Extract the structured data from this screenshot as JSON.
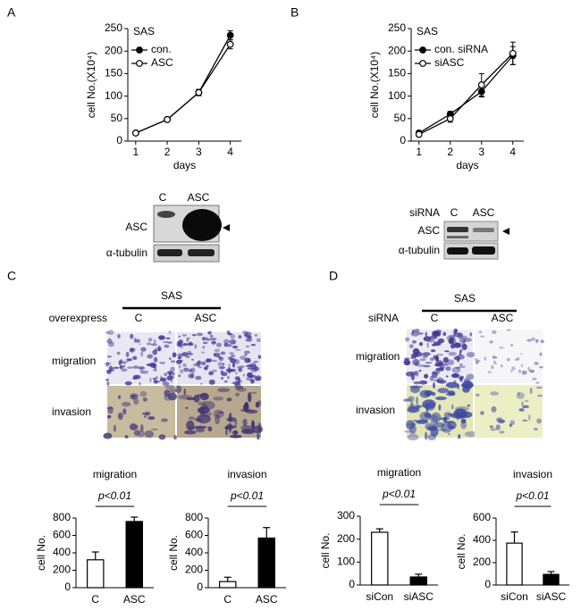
{
  "chart_data": [
    {
      "type": "line",
      "title": "SAS",
      "xlabel": "days",
      "ylabel": "cell No.(X10⁴)",
      "x": [
        1,
        2,
        3,
        4
      ],
      "xlim": [
        0.75,
        4.35
      ],
      "xticks": [
        1,
        2,
        3,
        4
      ],
      "ylim": [
        0,
        250
      ],
      "yticks": [
        0,
        50,
        100,
        150,
        200,
        250
      ],
      "series": [
        {
          "name": "con.",
          "color": "#000000",
          "fill": "#000000",
          "values": [
            18,
            48,
            108,
            235
          ],
          "errors": [
            3,
            3,
            7,
            10
          ]
        },
        {
          "name": "ASC",
          "color": "#000000",
          "fill": "#ffffff",
          "values": [
            18,
            48,
            108,
            215
          ],
          "errors": [
            3,
            3,
            7,
            10
          ]
        }
      ]
    },
    {
      "type": "line",
      "title": "SAS",
      "xlabel": "days",
      "ylabel": "cell No.(X10⁴)",
      "x": [
        1,
        2,
        3,
        4
      ],
      "xlim": [
        0.75,
        4.35
      ],
      "xticks": [
        1,
        2,
        3,
        4
      ],
      "ylim": [
        0,
        250
      ],
      "yticks": [
        0,
        50,
        100,
        150,
        200,
        250
      ],
      "series": [
        {
          "name": "con. siRNA",
          "color": "#000000",
          "fill": "#000000",
          "values": [
            18,
            60,
            110,
            190
          ],
          "errors": [
            5,
            6,
            12,
            20
          ]
        },
        {
          "name": "siASC",
          "color": "#000000",
          "fill": "#ffffff",
          "values": [
            15,
            50,
            125,
            195
          ],
          "errors": [
            5,
            8,
            25,
            25
          ]
        }
      ]
    },
    {
      "type": "bar",
      "title": "migration",
      "annotation": "p<0.01",
      "ylabel": "cell No.",
      "categories": [
        "C",
        "ASC"
      ],
      "values": [
        320,
        760
      ],
      "errors": [
        90,
        50
      ],
      "colors": [
        "#ffffff",
        "#000000"
      ],
      "ylim": [
        0,
        800
      ],
      "yticks": [
        0,
        200,
        400,
        600,
        800
      ]
    },
    {
      "type": "bar",
      "title": "invasion",
      "annotation": "p<0.01",
      "ylabel": "cell No.",
      "categories": [
        "C",
        "ASC"
      ],
      "values": [
        70,
        570
      ],
      "errors": [
        50,
        120
      ],
      "colors": [
        "#ffffff",
        "#000000"
      ],
      "ylim": [
        0,
        800
      ],
      "yticks": [
        0,
        200,
        400,
        600,
        800
      ]
    },
    {
      "type": "bar",
      "title": "migration",
      "annotation": "p<0.01",
      "ylabel": "cell No.",
      "categories": [
        "siCon",
        "siASC"
      ],
      "values": [
        230,
        35
      ],
      "errors": [
        15,
        12
      ],
      "colors": [
        "#ffffff",
        "#000000"
      ],
      "ylim": [
        0,
        300
      ],
      "yticks": [
        0,
        100,
        200,
        300
      ]
    },
    {
      "type": "bar",
      "title": "invasion",
      "annotation": "p<0.01",
      "ylabel": "cell No.",
      "categories": [
        "siCon",
        "siASC"
      ],
      "values": [
        375,
        95
      ],
      "errors": [
        100,
        25
      ],
      "colors": [
        "#ffffff",
        "#000000"
      ],
      "ylim": [
        0,
        600
      ],
      "yticks": [
        0,
        200,
        400,
        600
      ]
    }
  ],
  "figure": {
    "panels": [
      "A",
      "B",
      "C",
      "D"
    ],
    "blot_a": {
      "lanes": [
        "C",
        "ASC"
      ],
      "rows": [
        "ASC",
        "α-tubulin"
      ]
    },
    "blot_b": {
      "row_title": "siRNA",
      "lanes": [
        "C",
        "ASC"
      ],
      "rows": [
        "ASC",
        "α-tubulin"
      ]
    },
    "images_c": {
      "cell_line": "SAS",
      "row_title": "overexpress",
      "columns": [
        "C",
        "ASC"
      ],
      "rows": [
        "migration",
        "invasion"
      ]
    },
    "images_d": {
      "cell_line": "SAS",
      "row_title": "siRNA",
      "columns": [
        "C",
        "ASC"
      ],
      "rows": [
        "migration",
        "invasion"
      ]
    }
  }
}
